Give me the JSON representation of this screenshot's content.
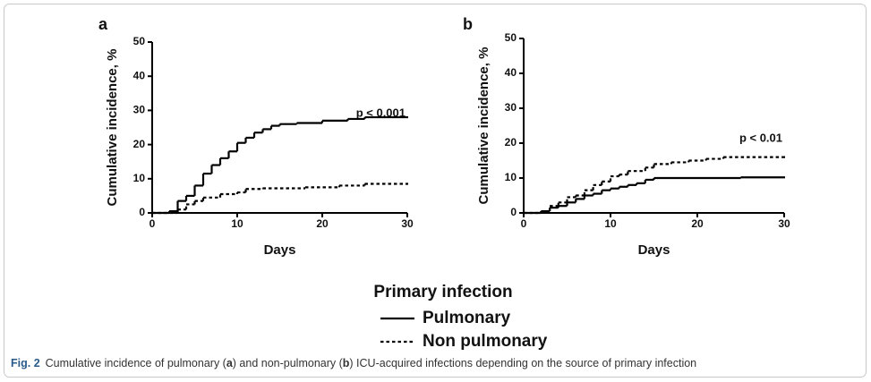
{
  "chart_data": [
    {
      "type": "line",
      "step": true,
      "panel": "a",
      "annotation": "p < 0.001",
      "xlabel": "Days",
      "ylabel": "Cumulative incidence, %",
      "xlim": [
        0,
        30
      ],
      "xticks": [
        0,
        10,
        20,
        30
      ],
      "ylim": [
        0,
        50
      ],
      "yticks": [
        0,
        10,
        20,
        30,
        40,
        50
      ],
      "series": [
        {
          "name": "Pulmonary",
          "color": "#000000",
          "dash": "solid",
          "x": [
            0,
            2,
            3,
            4,
            5,
            6,
            7,
            8,
            9,
            10,
            11,
            12,
            13,
            14,
            15,
            17,
            20,
            23,
            25,
            30
          ],
          "values": [
            0,
            0.5,
            3.5,
            5,
            8,
            11.5,
            14,
            16,
            18,
            20.5,
            22,
            23.5,
            24.5,
            25.5,
            26,
            26.3,
            27,
            27.5,
            28,
            28
          ]
        },
        {
          "name": "Non pulmonary",
          "color": "#000000",
          "dash": "dotted",
          "x": [
            0,
            3,
            4,
            5,
            6,
            8,
            10,
            11,
            13,
            18,
            22,
            25,
            30
          ],
          "values": [
            0,
            1,
            2.5,
            3.5,
            4.5,
            5.5,
            6,
            7,
            7.2,
            7.5,
            8,
            8.5,
            8.5
          ]
        }
      ]
    },
    {
      "type": "line",
      "step": true,
      "panel": "b",
      "annotation": "p < 0.01",
      "xlabel": "Days",
      "ylabel": "Cumulative incidence, %",
      "xlim": [
        0,
        30
      ],
      "xticks": [
        0,
        10,
        20,
        30
      ],
      "ylim": [
        0,
        50
      ],
      "yticks": [
        0,
        10,
        20,
        30,
        40,
        50
      ],
      "series": [
        {
          "name": "Pulmonary",
          "color": "#000000",
          "dash": "solid",
          "x": [
            0,
            2,
            3,
            4,
            5,
            6,
            7,
            8,
            9,
            10,
            11,
            12,
            13,
            14,
            15,
            20,
            25,
            30
          ],
          "values": [
            0,
            0.5,
            1.5,
            2,
            3,
            4,
            5,
            5.5,
            6.5,
            7,
            7.5,
            8,
            8.5,
            9.5,
            10,
            10,
            10.2,
            10.2
          ]
        },
        {
          "name": "Non pulmonary",
          "color": "#000000",
          "dash": "dotted",
          "x": [
            0,
            2,
            3,
            4,
            5,
            6,
            7,
            8,
            9,
            10,
            11,
            12,
            14,
            15,
            17,
            19,
            21,
            23,
            30
          ],
          "values": [
            0,
            0.5,
            2,
            3,
            4.5,
            5,
            6.5,
            8,
            9,
            10.5,
            11,
            12,
            13,
            14,
            14.5,
            15,
            15.5,
            16,
            16
          ]
        }
      ]
    }
  ],
  "legend": {
    "title": "Primary infection"
  },
  "caption": [
    "Fig. 2",
    "Cumulative incidence of pulmonary (",
    "a",
    ") and non-pulmonary (",
    "b",
    ") ICU-acquired infections depending on the source of primary infection"
  ]
}
